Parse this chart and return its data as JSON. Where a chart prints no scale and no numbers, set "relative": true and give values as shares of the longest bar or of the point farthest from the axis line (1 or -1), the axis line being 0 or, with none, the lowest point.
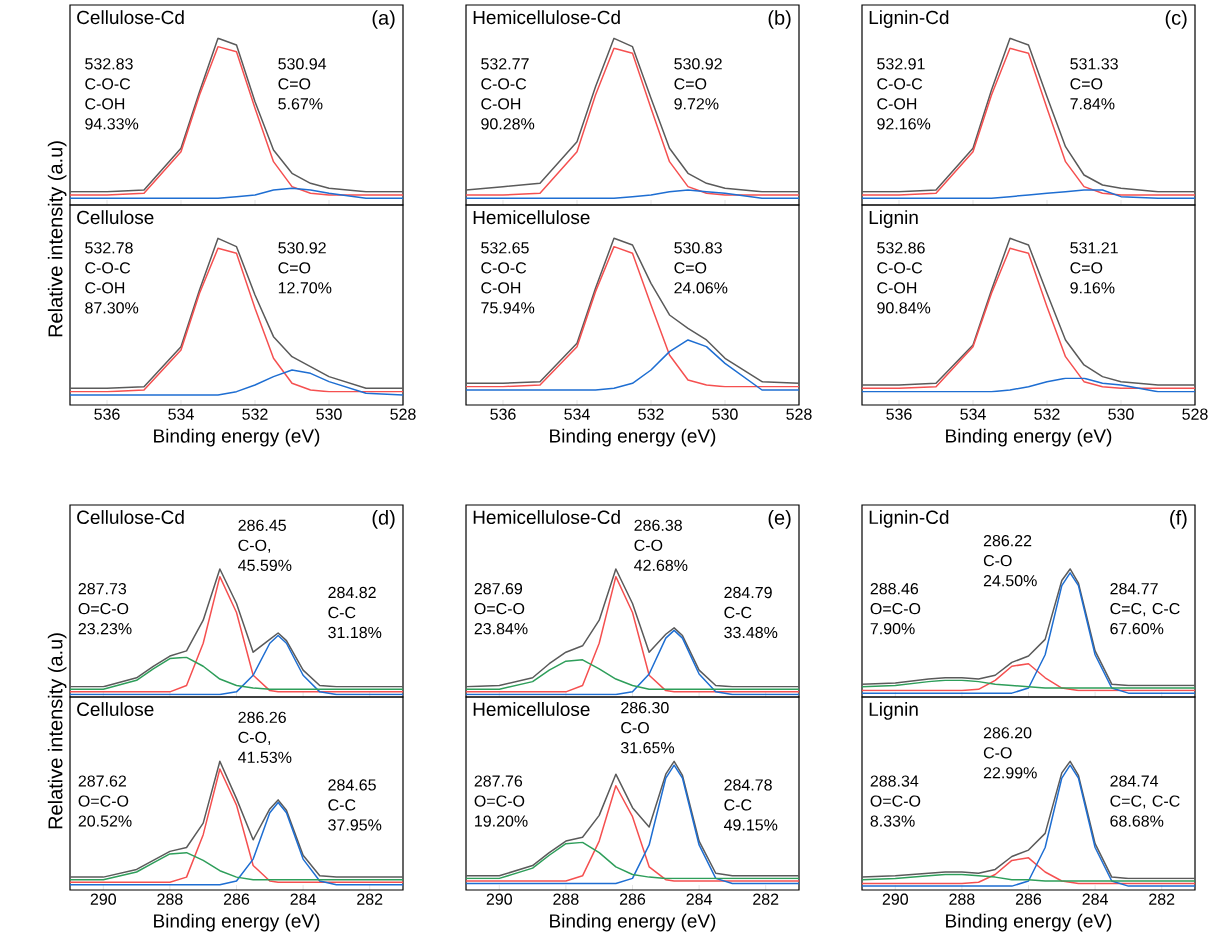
{
  "chart_data": [
    {
      "type": "line",
      "title": "Cellulose-Cd",
      "ylabel": "Relative intensity (a.u)",
      "relative": true,
      "tick_labels": false,
      "xlim": [
        537,
        528
      ],
      "xticks": [
        536,
        534,
        532,
        530,
        528
      ],
      "x": [
        537,
        536,
        535,
        534,
        533.5,
        533,
        532.5,
        532,
        531.5,
        531,
        530.5,
        530,
        529,
        528
      ],
      "annotations": [
        "(a)",
        "532.83 C-O-C C-OH 94.33%",
        "530.94 C=O 5.67%"
      ],
      "series": [
        {
          "color": "#5a5a5a",
          "values": [
            0.08,
            0.08,
            0.09,
            0.34,
            0.68,
            1.0,
            0.96,
            0.62,
            0.33,
            0.19,
            0.13,
            0.1,
            0.08,
            0.08
          ]
        },
        {
          "color": "#f55050",
          "values": [
            0.06,
            0.06,
            0.07,
            0.32,
            0.66,
            0.95,
            0.92,
            0.58,
            0.26,
            0.11,
            0.07,
            0.06,
            0.06,
            0.06
          ]
        },
        {
          "color": "#1e6ed2",
          "values": [
            0.04,
            0.04,
            0.04,
            0.04,
            0.04,
            0.04,
            0.05,
            0.06,
            0.09,
            0.1,
            0.09,
            0.07,
            0.04,
            0.04
          ]
        }
      ]
    },
    {
      "type": "line",
      "title": "Cellulose",
      "xlabel": "Binding energy (eV)",
      "relative": true,
      "tick_labels": "x",
      "xlim": [
        537,
        528
      ],
      "xticks": [
        536,
        534,
        532,
        530,
        528
      ],
      "x": [
        537,
        536,
        535,
        534,
        533.5,
        533,
        532.5,
        532,
        531.5,
        531,
        530.5,
        530,
        529,
        528
      ],
      "annotations": [
        "532.78 C-O-C C-OH 87.30%",
        "530.92 C=O 12.70%"
      ],
      "series": [
        {
          "color": "#5a5a5a",
          "values": [
            0.1,
            0.1,
            0.11,
            0.35,
            0.69,
            1.0,
            0.95,
            0.66,
            0.41,
            0.29,
            0.23,
            0.17,
            0.1,
            0.1
          ]
        },
        {
          "color": "#f55050",
          "values": [
            0.08,
            0.08,
            0.09,
            0.33,
            0.67,
            0.94,
            0.91,
            0.58,
            0.28,
            0.13,
            0.09,
            0.08,
            0.08,
            0.08
          ]
        },
        {
          "color": "#1e6ed2",
          "values": [
            0.06,
            0.06,
            0.06,
            0.06,
            0.06,
            0.06,
            0.08,
            0.12,
            0.17,
            0.21,
            0.19,
            0.14,
            0.07,
            0.06
          ]
        }
      ]
    },
    {
      "type": "line",
      "title": "Hemicellulose-Cd",
      "relative": true,
      "tick_labels": false,
      "xlim": [
        537,
        528
      ],
      "xticks": [
        536,
        534,
        532,
        530,
        528
      ],
      "x": [
        537,
        536,
        535,
        534,
        533.5,
        533,
        532.5,
        532,
        531.5,
        531,
        530.5,
        530,
        529,
        528
      ],
      "annotations": [
        "(b)",
        "532.77 C-O-C C-OH 90.28%",
        "530.92 C=O 9.72%"
      ],
      "series": [
        {
          "color": "#5a5a5a",
          "values": [
            0.09,
            0.11,
            0.13,
            0.38,
            0.71,
            1.0,
            0.95,
            0.64,
            0.34,
            0.19,
            0.13,
            0.1,
            0.08,
            0.08
          ]
        },
        {
          "color": "#f55050",
          "values": [
            0.06,
            0.06,
            0.07,
            0.32,
            0.66,
            0.94,
            0.91,
            0.58,
            0.26,
            0.11,
            0.07,
            0.06,
            0.06,
            0.06
          ]
        },
        {
          "color": "#1e6ed2",
          "values": [
            0.04,
            0.04,
            0.04,
            0.04,
            0.04,
            0.04,
            0.05,
            0.06,
            0.08,
            0.09,
            0.08,
            0.07,
            0.04,
            0.04
          ]
        }
      ]
    },
    {
      "type": "line",
      "title": "Hemicellulose",
      "xlabel": "Binding energy (eV)",
      "relative": true,
      "tick_labels": "x",
      "xlim": [
        537,
        528
      ],
      "xticks": [
        536,
        534,
        532,
        530,
        528
      ],
      "x": [
        537,
        536,
        535,
        534,
        533.5,
        533,
        532.5,
        532,
        531.5,
        531,
        530.5,
        530,
        529,
        528
      ],
      "annotations": [
        "532.65 C-O-C C-OH 75.94%",
        "530.83 C=O 24.06%"
      ],
      "series": [
        {
          "color": "#5a5a5a",
          "values": [
            0.13,
            0.13,
            0.14,
            0.37,
            0.7,
            1.0,
            0.96,
            0.73,
            0.54,
            0.46,
            0.39,
            0.28,
            0.14,
            0.13
          ]
        },
        {
          "color": "#f55050",
          "values": [
            0.11,
            0.11,
            0.12,
            0.35,
            0.68,
            0.95,
            0.91,
            0.6,
            0.3,
            0.15,
            0.12,
            0.11,
            0.11,
            0.11
          ]
        },
        {
          "color": "#1e6ed2",
          "values": [
            0.09,
            0.09,
            0.09,
            0.09,
            0.09,
            0.1,
            0.13,
            0.21,
            0.32,
            0.39,
            0.35,
            0.25,
            0.09,
            0.09
          ]
        }
      ]
    },
    {
      "type": "line",
      "title": "Lignin-Cd",
      "relative": true,
      "tick_labels": false,
      "xlim": [
        537,
        528
      ],
      "xticks": [
        536,
        534,
        532,
        530,
        528
      ],
      "x": [
        537,
        536,
        535,
        534,
        533.5,
        533,
        532.5,
        532,
        531.5,
        531,
        530.5,
        530,
        529,
        528
      ],
      "annotations": [
        "(c)",
        "532.91 C-O-C C-OH 92.16%",
        "531.33 C=O 7.84%"
      ],
      "series": [
        {
          "color": "#5a5a5a",
          "values": [
            0.08,
            0.08,
            0.09,
            0.34,
            0.69,
            1.0,
            0.96,
            0.65,
            0.35,
            0.18,
            0.12,
            0.1,
            0.08,
            0.08
          ]
        },
        {
          "color": "#f55050",
          "values": [
            0.06,
            0.06,
            0.07,
            0.32,
            0.66,
            0.94,
            0.91,
            0.58,
            0.26,
            0.11,
            0.07,
            0.06,
            0.06,
            0.06
          ]
        },
        {
          "color": "#1e6ed2",
          "values": [
            0.04,
            0.04,
            0.04,
            0.04,
            0.04,
            0.05,
            0.06,
            0.07,
            0.08,
            0.09,
            0.09,
            0.05,
            0.04,
            0.04
          ]
        }
      ]
    },
    {
      "type": "line",
      "title": "Lignin",
      "xlabel": "Binding energy (eV)",
      "relative": true,
      "tick_labels": "x",
      "xlim": [
        537,
        528
      ],
      "xticks": [
        536,
        534,
        532,
        530,
        528
      ],
      "x": [
        537,
        536,
        535,
        534,
        533.5,
        533,
        532.5,
        532,
        531.5,
        531,
        530.5,
        530,
        529,
        528
      ],
      "annotations": [
        "532.86 C-O-C C-OH 90.84%",
        "531.21 C=O 9.16%"
      ],
      "series": [
        {
          "color": "#5a5a5a",
          "values": [
            0.12,
            0.12,
            0.13,
            0.36,
            0.69,
            1.0,
            0.96,
            0.67,
            0.39,
            0.24,
            0.17,
            0.14,
            0.12,
            0.12
          ]
        },
        {
          "color": "#f55050",
          "values": [
            0.1,
            0.1,
            0.11,
            0.35,
            0.67,
            0.94,
            0.91,
            0.59,
            0.29,
            0.14,
            0.11,
            0.1,
            0.1,
            0.1
          ]
        },
        {
          "color": "#1e6ed2",
          "values": [
            0.08,
            0.08,
            0.08,
            0.08,
            0.08,
            0.09,
            0.11,
            0.14,
            0.16,
            0.16,
            0.13,
            0.12,
            0.08,
            0.08
          ]
        }
      ]
    },
    {
      "type": "line",
      "title": "Cellulose-Cd",
      "ylabel": "Relative intensity (a.u)",
      "relative": true,
      "tick_labels": false,
      "xlim": [
        291,
        281
      ],
      "xticks": [
        290,
        288,
        286,
        284,
        282
      ],
      "x": [
        291,
        290,
        289,
        288.5,
        288,
        287.5,
        287,
        286.5,
        286,
        285.5,
        285,
        284.75,
        284.5,
        284,
        283.5,
        283,
        282,
        281
      ],
      "annotations": [
        "(d)",
        "287.73 O=C-O 23.23%",
        "286.45 C-O, 45.59%",
        "284.82 C-C 31.18%"
      ],
      "series": [
        {
          "color": "#5a5a5a",
          "values": [
            0.08,
            0.08,
            0.15,
            0.24,
            0.32,
            0.36,
            0.6,
            1.0,
            0.73,
            0.35,
            0.45,
            0.5,
            0.44,
            0.21,
            0.09,
            0.08,
            0.08,
            0.08
          ]
        },
        {
          "color": "#f55050",
          "values": [
            0.04,
            0.04,
            0.04,
            0.04,
            0.04,
            0.09,
            0.42,
            0.94,
            0.66,
            0.17,
            0.05,
            0.04,
            0.04,
            0.04,
            0.04,
            0.04,
            0.04,
            0.04
          ]
        },
        {
          "color": "#1e6ed2",
          "values": [
            0.02,
            0.02,
            0.02,
            0.02,
            0.02,
            0.02,
            0.02,
            0.02,
            0.04,
            0.17,
            0.42,
            0.48,
            0.42,
            0.17,
            0.04,
            0.02,
            0.02,
            0.02
          ]
        },
        {
          "color": "#2e9e5a",
          "values": [
            0.06,
            0.06,
            0.13,
            0.22,
            0.3,
            0.31,
            0.24,
            0.14,
            0.09,
            0.07,
            0.06,
            0.06,
            0.06,
            0.06,
            0.06,
            0.06,
            0.06,
            0.06
          ]
        }
      ]
    },
    {
      "type": "line",
      "title": "Cellulose",
      "xlabel": "Binding energy (eV)",
      "relative": true,
      "tick_labels": "x",
      "xlim": [
        291,
        281
      ],
      "xticks": [
        290,
        288,
        286,
        284,
        282
      ],
      "x": [
        291,
        290,
        289,
        288.5,
        288,
        287.5,
        287,
        286.5,
        286,
        285.5,
        285,
        284.75,
        284.5,
        284,
        283.5,
        283,
        282,
        281
      ],
      "annotations": [
        "287.62 O=C-O 20.52%",
        "286.26 C-O, 41.53%",
        "284.65 C-C 37.95%"
      ],
      "series": [
        {
          "color": "#5a5a5a",
          "values": [
            0.1,
            0.1,
            0.16,
            0.23,
            0.3,
            0.33,
            0.52,
            1.0,
            0.71,
            0.39,
            0.63,
            0.7,
            0.62,
            0.27,
            0.11,
            0.1,
            0.1,
            0.1
          ]
        },
        {
          "color": "#f55050",
          "values": [
            0.06,
            0.06,
            0.06,
            0.06,
            0.06,
            0.1,
            0.43,
            0.94,
            0.66,
            0.19,
            0.07,
            0.06,
            0.06,
            0.06,
            0.06,
            0.06,
            0.06,
            0.06
          ]
        },
        {
          "color": "#1e6ed2",
          "values": [
            0.04,
            0.04,
            0.04,
            0.04,
            0.04,
            0.04,
            0.04,
            0.04,
            0.07,
            0.24,
            0.6,
            0.68,
            0.6,
            0.24,
            0.07,
            0.04,
            0.04,
            0.04
          ]
        },
        {
          "color": "#2e9e5a",
          "values": [
            0.08,
            0.08,
            0.14,
            0.21,
            0.28,
            0.29,
            0.23,
            0.15,
            0.1,
            0.08,
            0.08,
            0.08,
            0.08,
            0.08,
            0.08,
            0.08,
            0.08,
            0.08
          ]
        }
      ]
    },
    {
      "type": "line",
      "title": "Hemicellulose-Cd",
      "relative": true,
      "tick_labels": false,
      "xlim": [
        291,
        281
      ],
      "xticks": [
        290,
        288,
        286,
        284,
        282
      ],
      "x": [
        291,
        290,
        289,
        288.5,
        288,
        287.5,
        287,
        286.5,
        286,
        285.5,
        285,
        284.75,
        284.5,
        284,
        283.5,
        283,
        282,
        281
      ],
      "annotations": [
        "(e)",
        "287.69 O=C-O 23.84%",
        "286.38 C-O 42.68%",
        "284.79 C-C 33.48%"
      ],
      "series": [
        {
          "color": "#5a5a5a",
          "values": [
            0.08,
            0.09,
            0.15,
            0.26,
            0.35,
            0.4,
            0.6,
            1.0,
            0.73,
            0.35,
            0.49,
            0.54,
            0.48,
            0.21,
            0.09,
            0.08,
            0.08,
            0.08
          ]
        },
        {
          "color": "#f55050",
          "values": [
            0.04,
            0.04,
            0.04,
            0.04,
            0.04,
            0.09,
            0.42,
            0.94,
            0.66,
            0.17,
            0.05,
            0.04,
            0.04,
            0.04,
            0.04,
            0.04,
            0.04,
            0.04
          ]
        },
        {
          "color": "#1e6ed2",
          "values": [
            0.02,
            0.02,
            0.02,
            0.02,
            0.02,
            0.02,
            0.02,
            0.02,
            0.04,
            0.18,
            0.46,
            0.52,
            0.46,
            0.18,
            0.04,
            0.02,
            0.02,
            0.02
          ]
        },
        {
          "color": "#2e9e5a",
          "values": [
            0.06,
            0.06,
            0.12,
            0.21,
            0.28,
            0.29,
            0.22,
            0.14,
            0.09,
            0.06,
            0.06,
            0.06,
            0.06,
            0.06,
            0.06,
            0.06,
            0.06,
            0.06
          ]
        }
      ]
    },
    {
      "type": "line",
      "title": "Hemicellulose",
      "xlabel": "Binding energy (eV)",
      "relative": true,
      "tick_labels": "x",
      "xlim": [
        291,
        281
      ],
      "xticks": [
        290,
        288,
        286,
        284,
        282
      ],
      "x": [
        291,
        290,
        289,
        288.5,
        288,
        287.5,
        287,
        286.5,
        286,
        285.5,
        285,
        284.75,
        284.5,
        284,
        283.5,
        283,
        282,
        281
      ],
      "annotations": [
        "287.76 O=C-O 19.20%",
        "286.30 C-O 31.65%",
        "284.78 C-C 49.15%"
      ],
      "series": [
        {
          "color": "#5a5a5a",
          "values": [
            0.11,
            0.11,
            0.19,
            0.29,
            0.38,
            0.41,
            0.58,
            0.9,
            0.64,
            0.49,
            0.9,
            1.0,
            0.89,
            0.38,
            0.13,
            0.11,
            0.11,
            0.11
          ]
        },
        {
          "color": "#f55050",
          "values": [
            0.07,
            0.07,
            0.07,
            0.07,
            0.07,
            0.11,
            0.38,
            0.81,
            0.57,
            0.18,
            0.08,
            0.07,
            0.07,
            0.07,
            0.07,
            0.07,
            0.07,
            0.07
          ]
        },
        {
          "color": "#1e6ed2",
          "values": [
            0.05,
            0.05,
            0.05,
            0.05,
            0.05,
            0.05,
            0.05,
            0.05,
            0.09,
            0.35,
            0.87,
            0.97,
            0.87,
            0.35,
            0.09,
            0.05,
            0.05,
            0.05
          ]
        },
        {
          "color": "#2e9e5a",
          "values": [
            0.09,
            0.09,
            0.17,
            0.27,
            0.36,
            0.37,
            0.29,
            0.18,
            0.12,
            0.1,
            0.09,
            0.09,
            0.09,
            0.09,
            0.09,
            0.09,
            0.09,
            0.09
          ]
        }
      ]
    },
    {
      "type": "line",
      "title": "Lignin-Cd",
      "relative": true,
      "tick_labels": false,
      "xlim": [
        291,
        281
      ],
      "xticks": [
        290,
        288,
        286,
        284,
        282
      ],
      "x": [
        291,
        290,
        289,
        288.5,
        288,
        287.5,
        287,
        286.5,
        286,
        285.5,
        285,
        284.75,
        284.5,
        284,
        283.5,
        283,
        282,
        281
      ],
      "annotations": [
        "(f)",
        "288.46 O=C-O 7.90%",
        "286.22 C-O 24.50%",
        "284.77 C=C, C-C 67.60%"
      ],
      "series": [
        {
          "color": "#5a5a5a",
          "values": [
            0.1,
            0.11,
            0.14,
            0.15,
            0.15,
            0.14,
            0.17,
            0.27,
            0.32,
            0.45,
            0.91,
            1.0,
            0.89,
            0.36,
            0.1,
            0.09,
            0.09,
            0.09
          ]
        },
        {
          "color": "#f55050",
          "values": [
            0.05,
            0.05,
            0.05,
            0.05,
            0.05,
            0.06,
            0.13,
            0.24,
            0.26,
            0.15,
            0.07,
            0.06,
            0.05,
            0.05,
            0.05,
            0.05,
            0.05,
            0.05
          ]
        },
        {
          "color": "#1e6ed2",
          "values": [
            0.03,
            0.03,
            0.03,
            0.03,
            0.03,
            0.03,
            0.03,
            0.03,
            0.07,
            0.33,
            0.87,
            0.97,
            0.87,
            0.33,
            0.07,
            0.03,
            0.03,
            0.03
          ]
        },
        {
          "color": "#2e9e5a",
          "values": [
            0.08,
            0.09,
            0.12,
            0.13,
            0.13,
            0.12,
            0.1,
            0.09,
            0.08,
            0.07,
            0.07,
            0.07,
            0.07,
            0.07,
            0.07,
            0.07,
            0.07,
            0.07
          ]
        }
      ]
    },
    {
      "type": "line",
      "title": "Lignin",
      "xlabel": "Binding energy (eV)",
      "relative": true,
      "tick_labels": "x",
      "xlim": [
        291,
        281
      ],
      "xticks": [
        290,
        288,
        286,
        284,
        282
      ],
      "x": [
        291,
        290,
        289,
        288.5,
        288,
        287.5,
        287,
        286.5,
        286,
        285.5,
        285,
        284.75,
        284.5,
        284,
        283.5,
        283,
        282,
        281
      ],
      "annotations": [
        "288.34 O=C-O 8.33%",
        "286.20 C-O 22.99%",
        "284.74 C=C, C-C 68.68%"
      ],
      "series": [
        {
          "color": "#5a5a5a",
          "values": [
            0.1,
            0.11,
            0.13,
            0.14,
            0.14,
            0.13,
            0.16,
            0.26,
            0.31,
            0.44,
            0.91,
            1.0,
            0.89,
            0.36,
            0.1,
            0.09,
            0.09,
            0.09
          ]
        },
        {
          "color": "#f55050",
          "values": [
            0.05,
            0.05,
            0.05,
            0.05,
            0.05,
            0.06,
            0.12,
            0.23,
            0.25,
            0.14,
            0.07,
            0.06,
            0.05,
            0.05,
            0.05,
            0.05,
            0.05,
            0.05
          ]
        },
        {
          "color": "#1e6ed2",
          "values": [
            0.03,
            0.03,
            0.03,
            0.03,
            0.03,
            0.03,
            0.03,
            0.03,
            0.07,
            0.33,
            0.87,
            0.97,
            0.87,
            0.33,
            0.07,
            0.03,
            0.03,
            0.03
          ]
        },
        {
          "color": "#2e9e5a",
          "values": [
            0.08,
            0.09,
            0.11,
            0.12,
            0.12,
            0.11,
            0.1,
            0.08,
            0.08,
            0.07,
            0.07,
            0.07,
            0.07,
            0.07,
            0.07,
            0.07,
            0.07,
            0.07
          ]
        }
      ]
    }
  ]
}
